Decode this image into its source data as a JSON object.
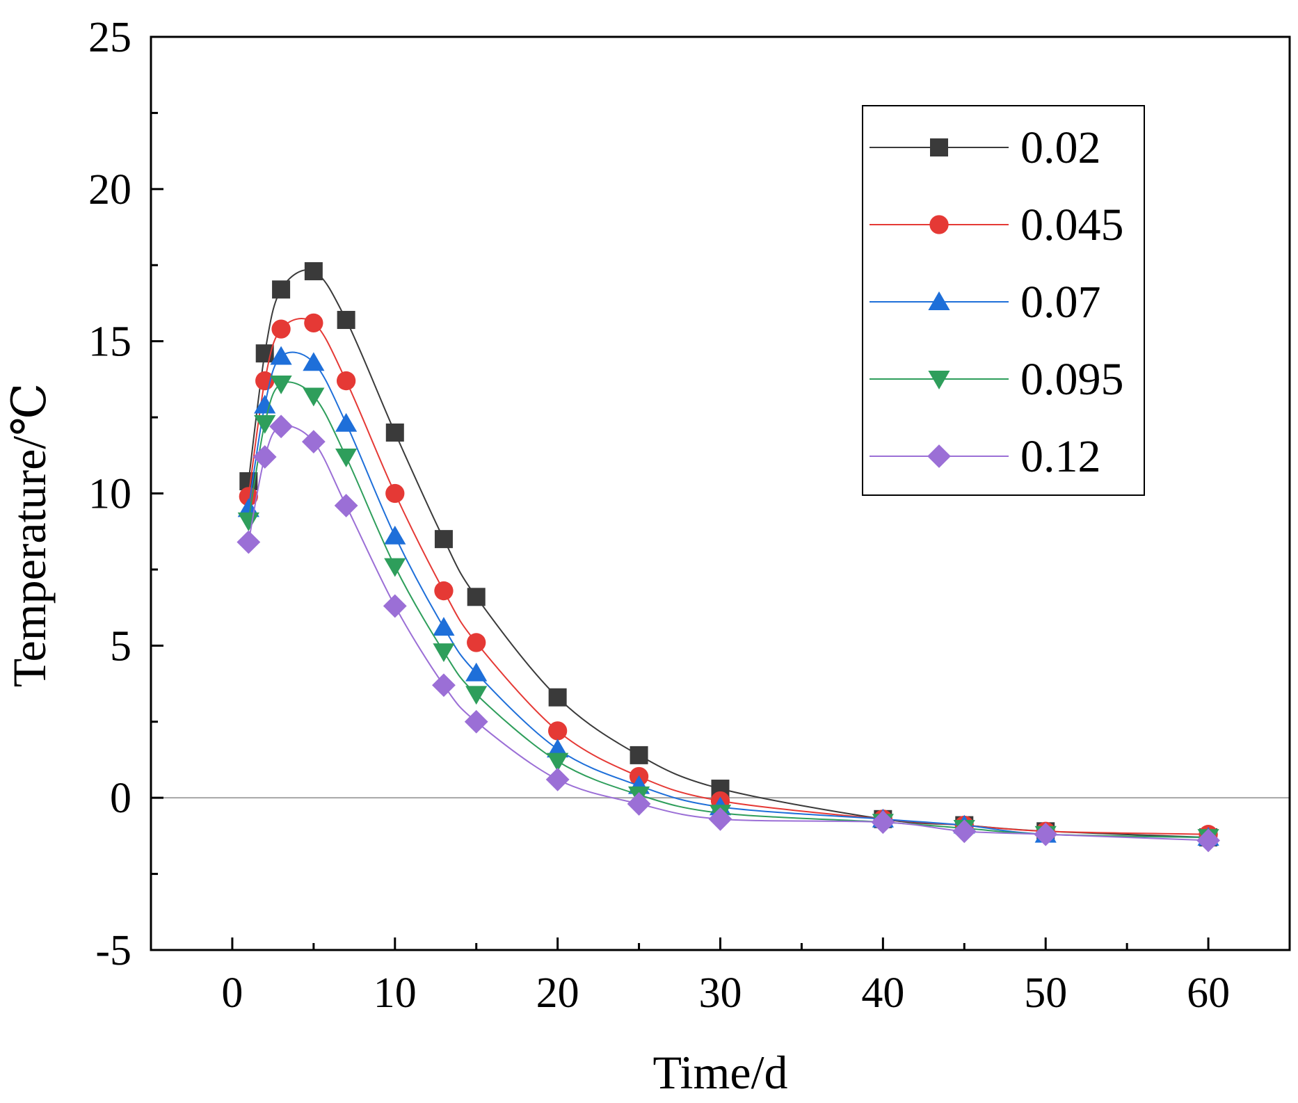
{
  "chart_data": {
    "type": "line",
    "title": "",
    "xlabel": "Time/d",
    "ylabel": "Temperature/℃",
    "xlim": [
      -5,
      65
    ],
    "ylim": [
      -5,
      25
    ],
    "xticks": [
      0,
      10,
      20,
      30,
      40,
      50,
      60
    ],
    "xtick_labels": [
      "0",
      "10",
      "20",
      "30",
      "40",
      "50",
      "60"
    ],
    "yticks": [
      -5,
      0,
      5,
      10,
      15,
      20,
      25
    ],
    "ytick_labels": [
      "-5",
      "0",
      "5",
      "10",
      "15",
      "20",
      "25"
    ],
    "zero_line": true,
    "grid": false,
    "legend_position": "top-right",
    "x": [
      1,
      2,
      3,
      5,
      7,
      10,
      13,
      15,
      20,
      25,
      30,
      40,
      45,
      50,
      60
    ],
    "series": [
      {
        "name": "0.02",
        "marker": "square",
        "color": "#3a3a3a",
        "values": [
          10.4,
          14.6,
          16.7,
          17.3,
          15.7,
          12.0,
          8.5,
          6.6,
          3.3,
          1.4,
          0.3,
          -0.7,
          -0.9,
          -1.1,
          -1.3
        ]
      },
      {
        "name": "0.045",
        "marker": "circle",
        "color": "#e53935",
        "values": [
          9.9,
          13.7,
          15.4,
          15.6,
          13.7,
          10.0,
          6.8,
          5.1,
          2.2,
          0.7,
          -0.1,
          -0.7,
          -0.9,
          -1.1,
          -1.2
        ]
      },
      {
        "name": "0.07",
        "marker": "triangle-up",
        "color": "#1e6fd9",
        "values": [
          9.5,
          12.9,
          14.5,
          14.3,
          12.3,
          8.6,
          5.6,
          4.1,
          1.6,
          0.4,
          -0.3,
          -0.7,
          -0.9,
          -1.2,
          -1.3
        ]
      },
      {
        "name": "0.095",
        "marker": "triangle-down",
        "color": "#2e9e5b",
        "values": [
          9.1,
          12.3,
          13.6,
          13.2,
          11.2,
          7.6,
          4.8,
          3.4,
          1.2,
          0.1,
          -0.5,
          -0.8,
          -1.0,
          -1.2,
          -1.3
        ]
      },
      {
        "name": "0.12",
        "marker": "diamond",
        "color": "#9b6fd6",
        "values": [
          8.4,
          11.2,
          12.2,
          11.7,
          9.6,
          6.3,
          3.7,
          2.5,
          0.6,
          -0.2,
          -0.7,
          -0.8,
          -1.1,
          -1.2,
          -1.4
        ]
      }
    ]
  }
}
